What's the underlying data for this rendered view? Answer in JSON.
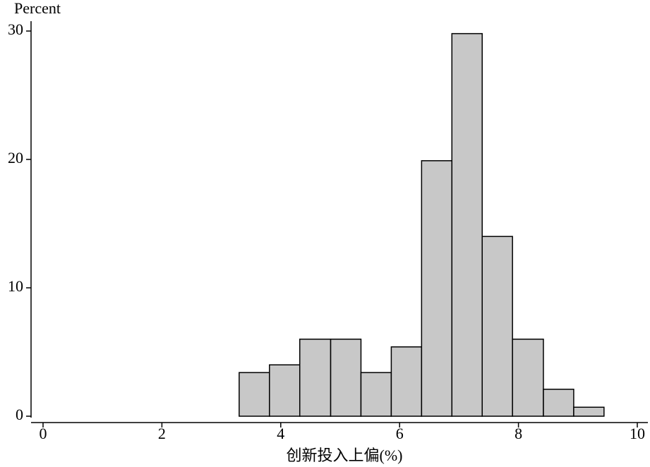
{
  "chart_data": {
    "type": "histogram",
    "ylabel": "Percent",
    "xlabel": "创新投入上偏(%)",
    "bins": [
      3.3,
      3.81,
      4.32,
      4.84,
      5.35,
      5.86,
      6.37,
      6.88,
      7.39,
      7.9,
      8.42,
      8.93,
      9.44
    ],
    "counts": [
      3.4,
      4.0,
      6.0,
      6.0,
      3.4,
      5.4,
      19.9,
      29.8,
      14.0,
      6.0,
      2.1,
      0.7
    ],
    "color": "#c8c8c8",
    "xlim": [
      0,
      10
    ],
    "xticks": [
      0,
      2,
      4,
      6,
      8,
      10
    ],
    "ylim": [
      0,
      30
    ],
    "yticks": [
      0,
      10,
      20,
      30
    ]
  }
}
